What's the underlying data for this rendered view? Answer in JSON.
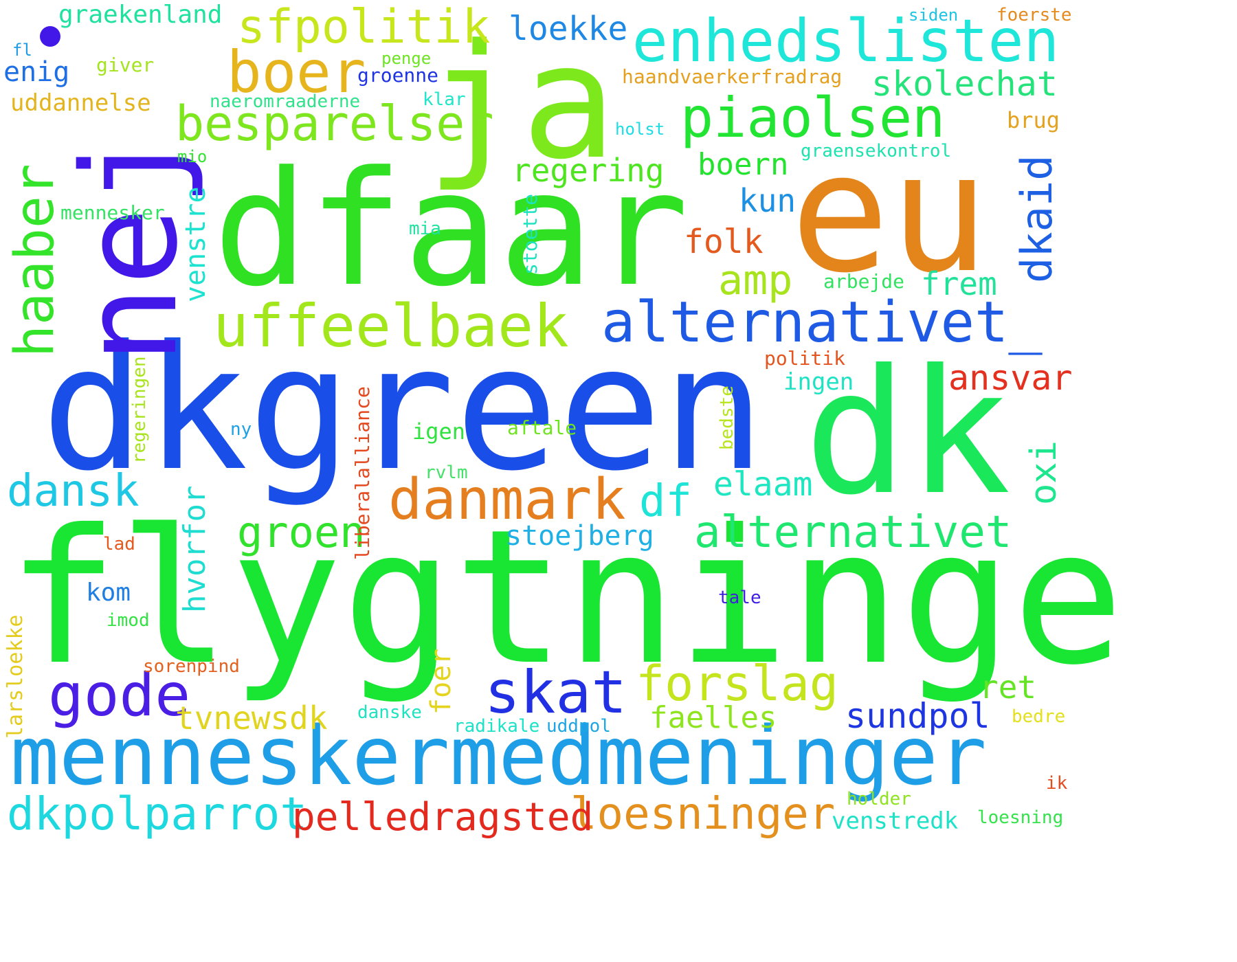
{
  "words": [
    {
      "text": "flygtninge",
      "color": "#18e632",
      "rotated": false
    },
    {
      "text": "dkgreen",
      "color": "#1a4ee8",
      "rotated": false
    },
    {
      "text": "dfaar",
      "color": "#30e022",
      "rotated": false
    },
    {
      "text": "dk",
      "color": "#1ae85a",
      "rotated": false
    },
    {
      "text": "eu",
      "color": "#e4851c",
      "rotated": false
    },
    {
      "text": "nej",
      "color": "#4218e8",
      "rotated": true
    },
    {
      "text": "ja",
      "color": "#7de81c",
      "rotated": false
    },
    {
      "text": "menneskermedmeninger",
      "color": "#1e9ee6",
      "rotated": false
    },
    {
      "text": "enhedslisten",
      "color": "#1ee6d8",
      "rotated": false
    },
    {
      "text": "alternativet_",
      "color": "#1e5ae4",
      "rotated": false
    },
    {
      "text": "uffeelbaek",
      "color": "#a2e61c",
      "rotated": false
    },
    {
      "text": "piaolsen",
      "color": "#22e432",
      "rotated": false
    },
    {
      "text": "besparelser",
      "color": "#7ee61e",
      "rotated": false
    },
    {
      "text": "boer",
      "color": "#e6b41c",
      "rotated": false
    },
    {
      "text": "sfpolitik",
      "color": "#c8e61c",
      "rotated": false
    },
    {
      "text": "danmark",
      "color": "#e47e1e",
      "rotated": false
    },
    {
      "text": "skat",
      "color": "#2030e2",
      "rotated": false
    },
    {
      "text": "gode",
      "color": "#4a1ee4",
      "rotated": false
    },
    {
      "text": "forslag",
      "color": "#c4e41e",
      "rotated": false
    },
    {
      "text": "alternativet",
      "color": "#1ee66e",
      "rotated": false
    },
    {
      "text": "loesninger",
      "color": "#e4901e",
      "rotated": false
    },
    {
      "text": "dkpolparrot",
      "color": "#1ed8e0",
      "rotated": false
    },
    {
      "text": "pelledragsted",
      "color": "#e42a1e",
      "rotated": false
    },
    {
      "text": "haaber",
      "color": "#34e42a",
      "rotated": true
    },
    {
      "text": "dansk",
      "color": "#1ec8e4",
      "rotated": false
    },
    {
      "text": "groen",
      "color": "#30e22c",
      "rotated": false
    },
    {
      "text": "df",
      "color": "#1ee4d8",
      "rotated": false
    },
    {
      "text": "amp",
      "color": "#a8e41e",
      "rotated": false
    },
    {
      "text": "dkaid",
      "color": "#1e60e4",
      "rotated": true
    },
    {
      "text": "sundpol",
      "color": "#1e36e2",
      "rotated": false
    },
    {
      "text": "skolechat",
      "color": "#26e27a",
      "rotated": false
    },
    {
      "text": "loekke",
      "color": "#1e88e4",
      "rotated": false
    },
    {
      "text": "regering",
      "color": "#4ee420",
      "rotated": false
    },
    {
      "text": "boern",
      "color": "#22e42e",
      "rotated": false
    },
    {
      "text": "folk",
      "color": "#e45a1e",
      "rotated": false
    },
    {
      "text": "kun",
      "color": "#1e90e4",
      "rotated": false
    },
    {
      "text": "frem",
      "color": "#22e29a",
      "rotated": false
    },
    {
      "text": "ansvar",
      "color": "#e4301e",
      "rotated": false
    },
    {
      "text": "oxi",
      "color": "#1ee68e",
      "rotated": true
    },
    {
      "text": "elaam",
      "color": "#1ee6c0",
      "rotated": false
    },
    {
      "text": "stoejberg",
      "color": "#1eb0e4",
      "rotated": false
    },
    {
      "text": "tvnewsdk",
      "color": "#e0d41e",
      "rotated": false
    },
    {
      "text": "faelles",
      "color": "#8ee41e",
      "rotated": false
    },
    {
      "text": "ret",
      "color": "#64e424",
      "rotated": false
    },
    {
      "text": "venstredk",
      "color": "#1ee2c8",
      "rotated": false
    },
    {
      "text": "venstre",
      "color": "#1ee2d0",
      "rotated": true
    },
    {
      "text": "hvorfor",
      "color": "#1edcd0",
      "rotated": true
    },
    {
      "text": "graekenland",
      "color": "#1ee29e",
      "rotated": false
    },
    {
      "text": "enig",
      "color": "#1e6ee4",
      "rotated": false
    },
    {
      "text": "uddannelse",
      "color": "#e4b41e",
      "rotated": false
    },
    {
      "text": "giver",
      "color": "#a4e41e",
      "rotated": false
    },
    {
      "text": "groenne",
      "color": "#1e34e2",
      "rotated": false
    },
    {
      "text": "haandvaerkerfradrag",
      "color": "#e4a01e",
      "rotated": false
    },
    {
      "text": "naeromraaderne",
      "color": "#30e28a",
      "rotated": false
    },
    {
      "text": "klar",
      "color": "#1ee6c8",
      "rotated": false
    },
    {
      "text": "holst",
      "color": "#1edce4",
      "rotated": false
    },
    {
      "text": "brug",
      "color": "#e4a21e",
      "rotated": false
    },
    {
      "text": "graensekontrol",
      "color": "#1ee2ae",
      "rotated": false
    },
    {
      "text": "mio",
      "color": "#34e234",
      "rotated": false
    },
    {
      "text": "mennesker",
      "color": "#34e264",
      "rotated": false
    },
    {
      "text": "mia",
      "color": "#1ee2a0",
      "rotated": false
    },
    {
      "text": "stoette",
      "color": "#1ee2c0",
      "rotated": true
    },
    {
      "text": "arbejde",
      "color": "#30e260",
      "rotated": false
    },
    {
      "text": "politik",
      "color": "#e4541e",
      "rotated": false
    },
    {
      "text": "ingen",
      "color": "#1ee2c4",
      "rotated": false
    },
    {
      "text": "igen",
      "color": "#30e240",
      "rotated": false
    },
    {
      "text": "aftale",
      "color": "#6ee420",
      "rotated": false
    },
    {
      "text": "rvlm",
      "color": "#44e268",
      "rotated": false
    },
    {
      "text": "bedste",
      "color": "#b6e41e",
      "rotated": true
    },
    {
      "text": "liberalalliance",
      "color": "#e4481e",
      "rotated": true
    },
    {
      "text": "regeringen",
      "color": "#a8e41e",
      "rotated": true
    },
    {
      "text": "ny",
      "color": "#1ea0e4",
      "rotated": false
    },
    {
      "text": "lad",
      "color": "#e45a1e",
      "rotated": false
    },
    {
      "text": "kom",
      "color": "#1e7ee4",
      "rotated": false
    },
    {
      "text": "imod",
      "color": "#34e244",
      "rotated": false
    },
    {
      "text": "larsloekke",
      "color": "#e4cc1e",
      "rotated": true
    },
    {
      "text": "sorenpind",
      "color": "#e4601e",
      "rotated": false
    },
    {
      "text": "foer",
      "color": "#e4d41e",
      "rotated": true
    },
    {
      "text": "danske",
      "color": "#1ee2c0",
      "rotated": false
    },
    {
      "text": "radikale",
      "color": "#1ee2c8",
      "rotated": false
    },
    {
      "text": "uddpol",
      "color": "#1ea6e4",
      "rotated": false
    },
    {
      "text": "tale",
      "color": "#4220e2",
      "rotated": false
    },
    {
      "text": "holder",
      "color": "#8ee41e",
      "rotated": false
    },
    {
      "text": "loesning",
      "color": "#34e24c",
      "rotated": false
    },
    {
      "text": "ik",
      "color": "#e44c1e",
      "rotated": false
    },
    {
      "text": "bedre",
      "color": "#e4e01e",
      "rotated": false
    },
    {
      "text": "siden",
      "color": "#1ec4e4",
      "rotated": false
    },
    {
      "text": "foerste",
      "color": "#e48a1e",
      "rotated": false
    },
    {
      "text": "fl",
      "color": "#1e9ce4",
      "rotated": false
    },
    {
      "text": "penge",
      "color": "#6ee424",
      "rotated": false
    }
  ]
}
